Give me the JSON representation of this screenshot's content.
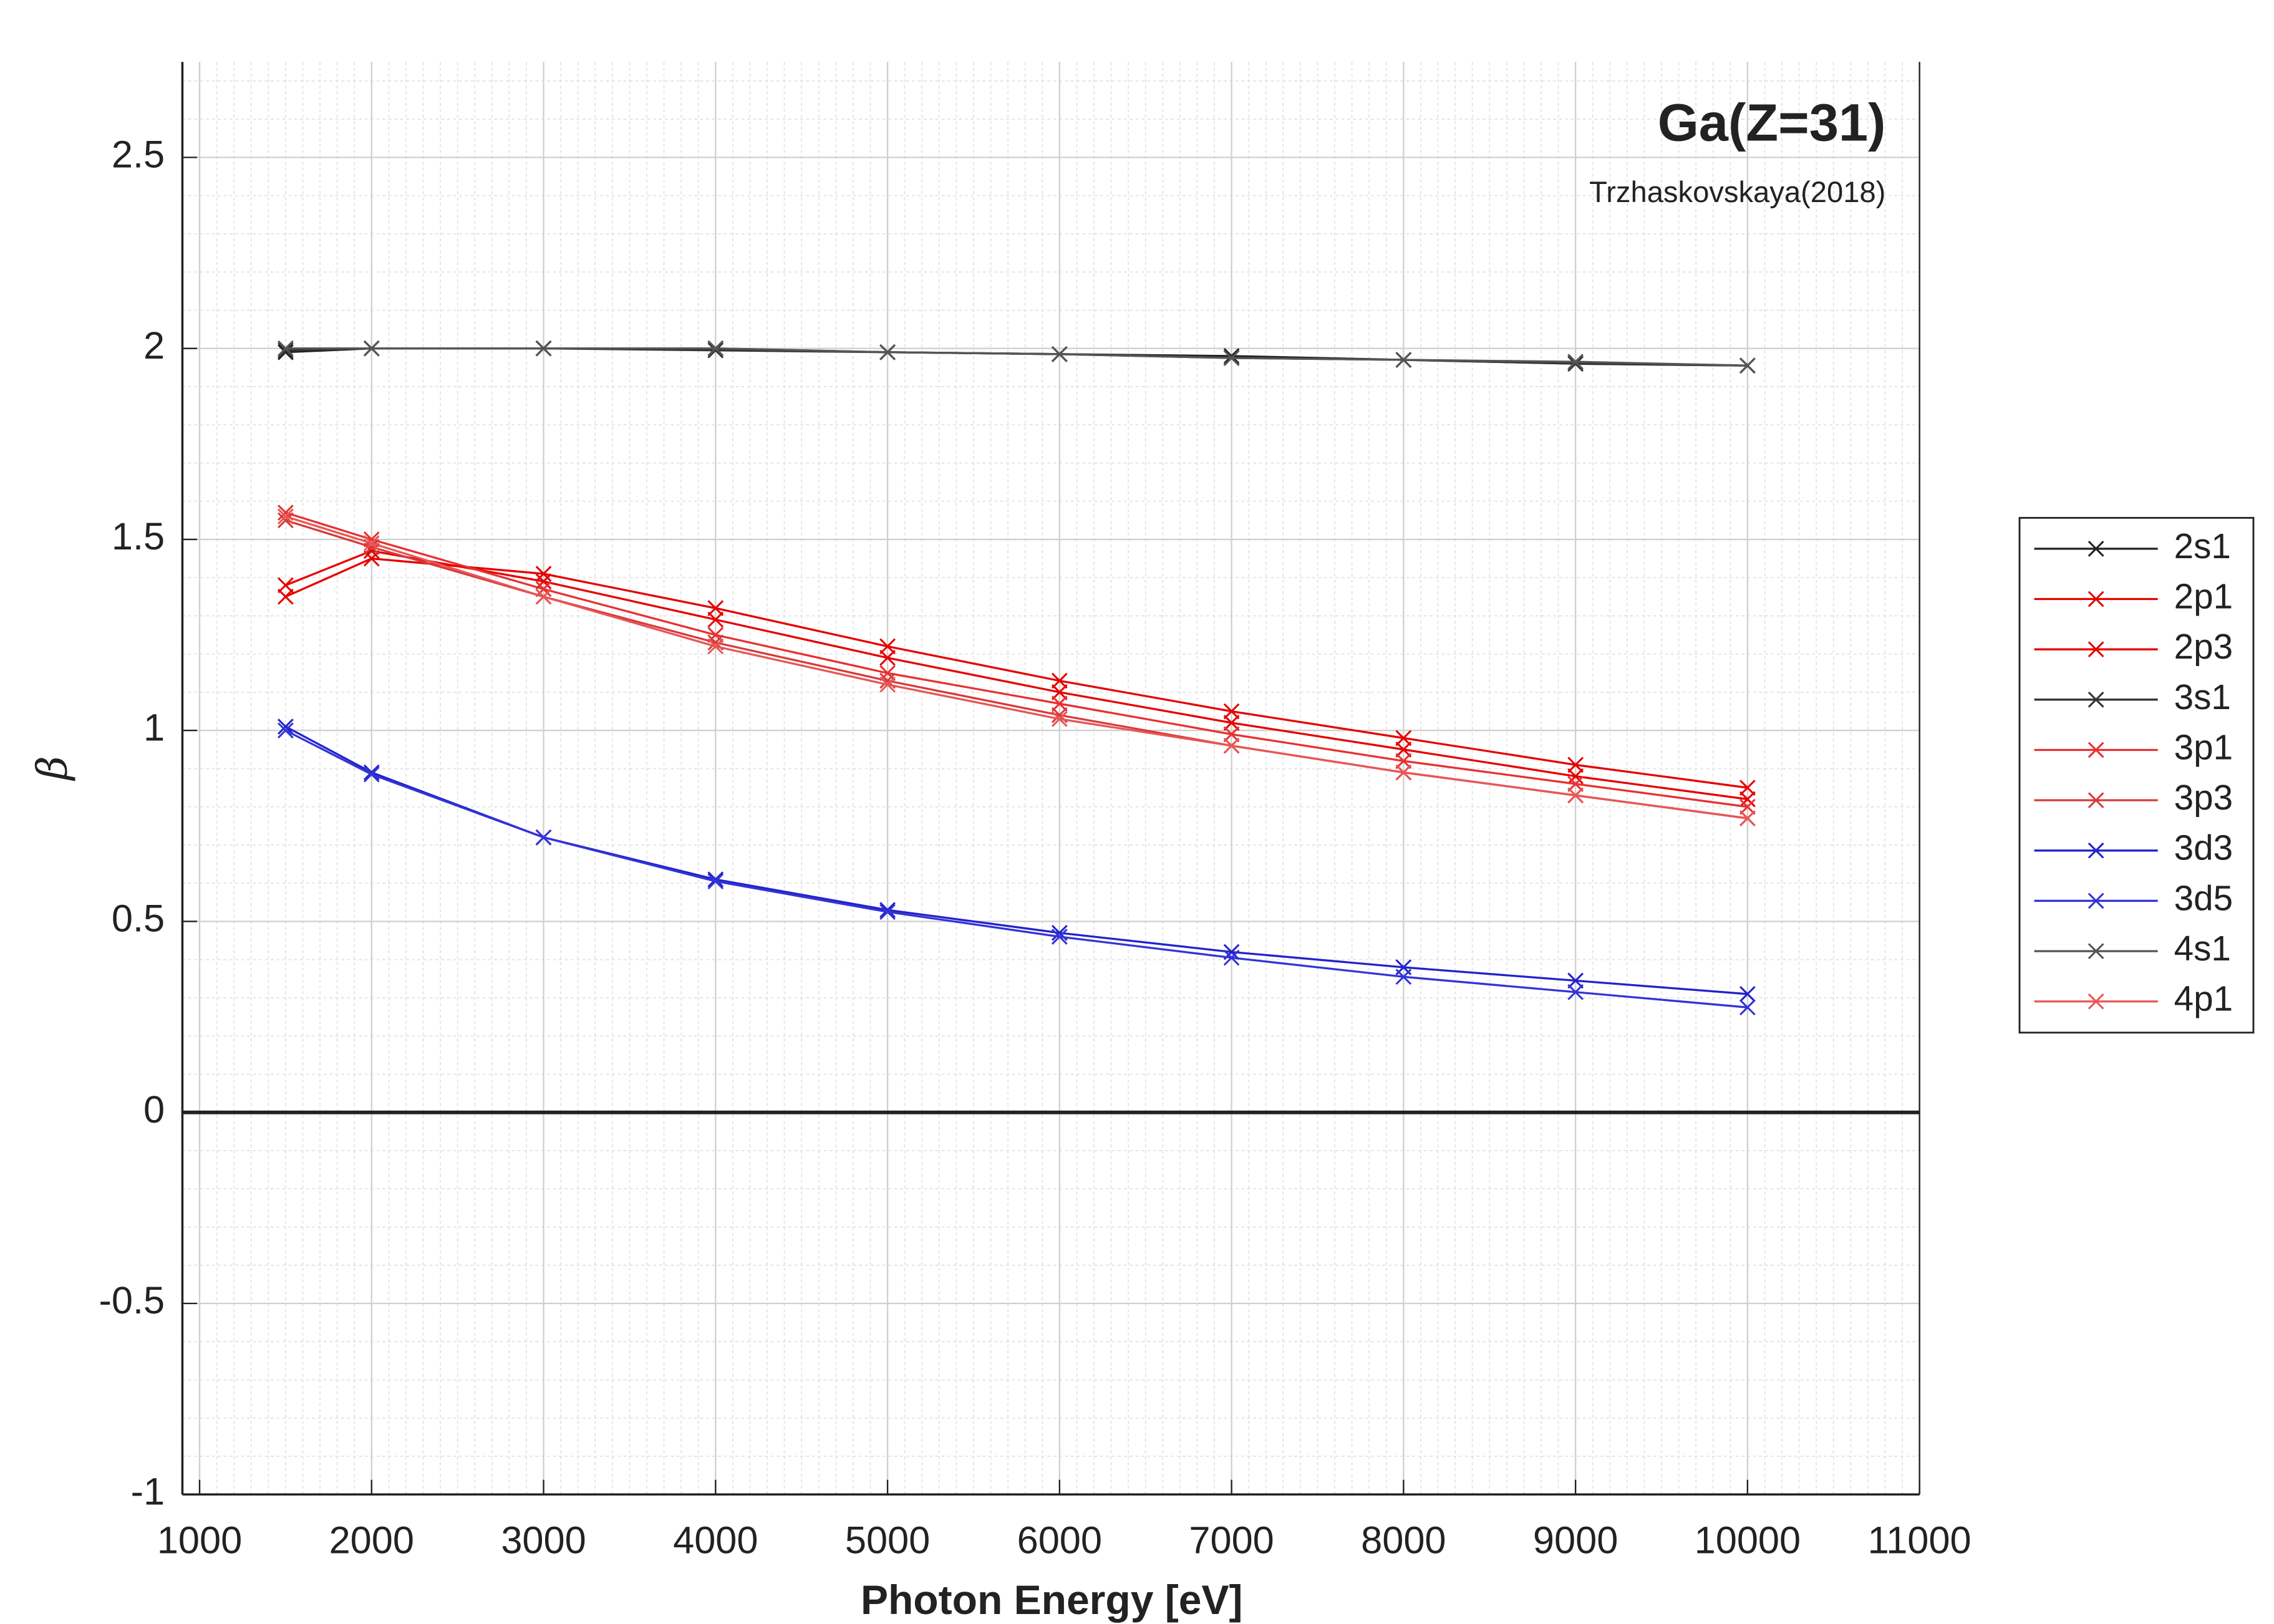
{
  "chart_data": {
    "type": "line",
    "title": "Ga(Z=31)",
    "subtitle": "Trzhaskovskaya(2018)",
    "x_label": "Photon Energy [eV]",
    "y_label": "β",
    "x": [
      1500,
      2000,
      3000,
      4000,
      5000,
      6000,
      7000,
      8000,
      9000,
      10000
    ],
    "series": [
      {
        "name": "2s1",
        "color": "#222222",
        "values": [
          1.99,
          2.0,
          2.0,
          2.0,
          1.99,
          1.985,
          1.98,
          1.97,
          1.96,
          1.955
        ]
      },
      {
        "name": "2p1",
        "color": "#e60000",
        "values": [
          1.35,
          1.45,
          1.41,
          1.32,
          1.22,
          1.13,
          1.05,
          0.98,
          0.91,
          0.85
        ]
      },
      {
        "name": "2p3",
        "color": "#e60000",
        "values": [
          1.38,
          1.47,
          1.39,
          1.29,
          1.19,
          1.1,
          1.02,
          0.95,
          0.88,
          0.82
        ]
      },
      {
        "name": "3s1",
        "color": "#333333",
        "values": [
          1.995,
          2.0,
          2.0,
          1.995,
          1.99,
          1.985,
          1.975,
          1.97,
          1.96,
          1.955
        ]
      },
      {
        "name": "3p1",
        "color": "#e83030",
        "values": [
          1.57,
          1.5,
          1.37,
          1.25,
          1.15,
          1.07,
          0.99,
          0.92,
          0.86,
          0.8
        ]
      },
      {
        "name": "3p3",
        "color": "#d83a3a",
        "values": [
          1.55,
          1.48,
          1.35,
          1.23,
          1.13,
          1.04,
          0.96,
          0.89,
          0.83,
          0.77
        ]
      },
      {
        "name": "3d3",
        "color": "#2222cc",
        "values": [
          1.01,
          0.89,
          0.72,
          0.61,
          0.53,
          0.47,
          0.42,
          0.38,
          0.345,
          0.31
        ]
      },
      {
        "name": "3d5",
        "color": "#3333d8",
        "values": [
          1.0,
          0.885,
          0.72,
          0.605,
          0.525,
          0.46,
          0.405,
          0.355,
          0.315,
          0.275
        ]
      },
      {
        "name": "4s1",
        "color": "#555555",
        "values": [
          2.0,
          2.0,
          2.0,
          2.0,
          1.99,
          1.985,
          1.975,
          1.97,
          1.965,
          1.955
        ]
      },
      {
        "name": "4p1",
        "color": "#e85555",
        "values": [
          1.56,
          1.49,
          1.35,
          1.22,
          1.12,
          1.03,
          0.96,
          0.89,
          0.83,
          0.77
        ]
      }
    ],
    "xlim": [
      900,
      11000
    ],
    "ylim": [
      -1,
      2.75
    ],
    "xticks": [
      1000,
      2000,
      3000,
      4000,
      5000,
      6000,
      7000,
      8000,
      9000,
      10000,
      11000
    ],
    "yticks": [
      -1,
      -0.5,
      0,
      0.5,
      1,
      1.5,
      2,
      2.5
    ],
    "grid": true,
    "minor_grid": true,
    "legend": "outside-right",
    "marker": "x"
  }
}
